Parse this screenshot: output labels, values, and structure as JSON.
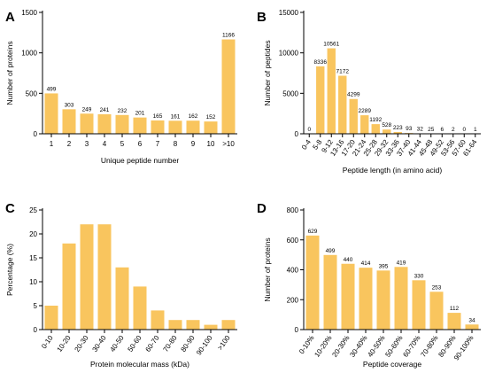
{
  "colors": {
    "bar": "#F9C55E",
    "axis": "#000000"
  },
  "chart_data": [
    {
      "panel": "A",
      "type": "bar",
      "categories": [
        "1",
        "2",
        "3",
        "4",
        "5",
        "6",
        "7",
        "8",
        "9",
        "10",
        ">10"
      ],
      "values": [
        499,
        303,
        249,
        241,
        232,
        201,
        165,
        161,
        162,
        152,
        1166
      ],
      "data_labels": [
        "499",
        "303",
        "249",
        "241",
        "232",
        "201",
        "165",
        "161",
        "162",
        "152",
        "1166"
      ],
      "xlabel": "Unique peptide number",
      "ylabel": "Number of proteins",
      "ylim": [
        0,
        1500
      ],
      "yticks": [
        0,
        500,
        1000,
        1500
      ],
      "x_tick_rotation": 0
    },
    {
      "panel": "B",
      "type": "bar",
      "categories": [
        "0-4",
        "5-8",
        "9-12",
        "13-16",
        "17-20",
        "21-24",
        "25-28",
        "29-32",
        "33-36",
        "37-40",
        "41-44",
        "45-48",
        "49-52",
        "53-56",
        "57-60",
        "61-64"
      ],
      "values": [
        0,
        8336,
        10561,
        7172,
        4299,
        2289,
        1192,
        528,
        223,
        93,
        32,
        25,
        6,
        2,
        0,
        1
      ],
      "data_labels": [
        "0",
        "8336",
        "10561",
        "7172",
        "4299",
        "2289",
        "1192",
        "528",
        "223",
        "93",
        "32",
        "25",
        "6",
        "2",
        "0",
        "1"
      ],
      "xlabel": "Peptide length (in amino acid)",
      "ylabel": "Number of peptides",
      "ylim": [
        0,
        15000
      ],
      "yticks": [
        0,
        5000,
        10000,
        15000
      ],
      "x_tick_rotation": -55
    },
    {
      "panel": "C",
      "type": "bar",
      "categories": [
        "0-10",
        "10-20",
        "20-30",
        "30-40",
        "40-50",
        "50-60",
        "60-70",
        "70-80",
        "80-90",
        "90-100",
        ">100"
      ],
      "values": [
        5,
        18,
        22,
        22,
        13,
        9,
        4,
        2,
        2,
        1,
        2
      ],
      "data_labels": [],
      "xlabel": "Protein molecular mass (kDa)",
      "ylabel": "Percentage (%)",
      "ylim": [
        0,
        25
      ],
      "yticks": [
        0,
        5,
        10,
        15,
        20,
        25
      ],
      "x_tick_rotation": -55
    },
    {
      "panel": "D",
      "type": "bar",
      "categories": [
        "0-10%",
        "10-20%",
        "20-30%",
        "30-40%",
        "40-50%",
        "50-60%",
        "60-70%",
        "70-80%",
        "80-90%",
        "90-100%"
      ],
      "values": [
        629,
        499,
        440,
        414,
        395,
        419,
        330,
        253,
        112,
        34
      ],
      "data_labels": [
        "629",
        "499",
        "440",
        "414",
        "395",
        "419",
        "330",
        "253",
        "112",
        "34"
      ],
      "xlabel": "Peptide coverage",
      "ylabel": "Number of proteins",
      "ylim": [
        0,
        800
      ],
      "yticks": [
        0,
        200,
        400,
        600,
        800
      ],
      "x_tick_rotation": -55
    }
  ]
}
